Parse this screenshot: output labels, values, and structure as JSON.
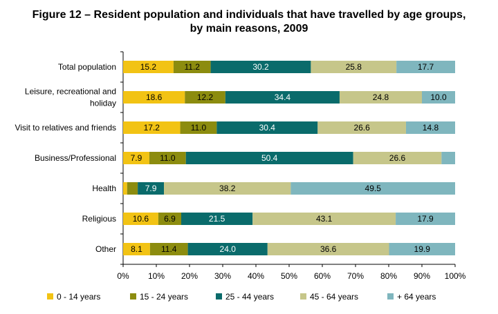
{
  "title_line1": "Figure 12 – Resident population and individuals that have travelled by age groups,",
  "title_line2": "by main reasons, 2009",
  "chart_data": {
    "type": "bar",
    "orientation": "horizontal",
    "stacked": "percent",
    "title": "Figure 12 – Resident population and individuals that have travelled by age groups, by main reasons, 2009",
    "categories": [
      [
        "Total population"
      ],
      [
        "Leisure, recreational and",
        "holiday"
      ],
      [
        "Visit to relatives and friends"
      ],
      [
        "Business/Professional"
      ],
      [
        "Health"
      ],
      [
        "Religious"
      ],
      [
        "Other"
      ]
    ],
    "series": [
      {
        "name": "0 - 14 years",
        "color": "#f2c314",
        "label_color": "#000000",
        "values": [
          15.2,
          18.6,
          17.2,
          7.9,
          1.2,
          10.6,
          8.1
        ]
      },
      {
        "name": "15 - 24 years",
        "color": "#8c8c0f",
        "label_color": "#000000",
        "values": [
          11.2,
          12.2,
          11.0,
          11.0,
          3.2,
          6.9,
          11.4
        ]
      },
      {
        "name": "25 - 44 years",
        "color": "#0a6b6b",
        "label_color": "#ffffff",
        "values": [
          30.2,
          34.4,
          30.4,
          50.4,
          7.9,
          21.5,
          24.0
        ]
      },
      {
        "name": "45 - 64 years",
        "color": "#c6c68a",
        "label_color": "#000000",
        "values": [
          25.8,
          24.8,
          26.6,
          26.6,
          38.2,
          43.1,
          36.6
        ]
      },
      {
        "name": "+ 64 years",
        "color": "#7fb6be",
        "label_color": "#000000",
        "values": [
          17.7,
          10.0,
          14.8,
          4.1,
          49.5,
          17.9,
          19.9
        ]
      }
    ],
    "data_labels": [
      [
        "15.2",
        "11.2",
        "30.2",
        "25.8",
        "17.7"
      ],
      [
        "18.6",
        "12.2",
        "34.4",
        "24.8",
        "10.0"
      ],
      [
        "17.2",
        "11.0",
        "30.4",
        "26.6",
        "14.8"
      ],
      [
        "7.9",
        "11.0",
        "50.4",
        "26.6",
        ""
      ],
      [
        "",
        "",
        "7.9",
        "38.2",
        "49.5"
      ],
      [
        "10.6",
        "6.9",
        "21.5",
        "43.1",
        "17.9"
      ],
      [
        "8.1",
        "11.4",
        "24.0",
        "36.6",
        "19.9"
      ]
    ],
    "x_ticks": [
      "0%",
      "10%",
      "20%",
      "30%",
      "40%",
      "50%",
      "60%",
      "70%",
      "80%",
      "90%",
      "100%"
    ],
    "xlim": [
      0,
      100
    ],
    "xlabel": "",
    "ylabel": "",
    "legend_position": "bottom"
  }
}
